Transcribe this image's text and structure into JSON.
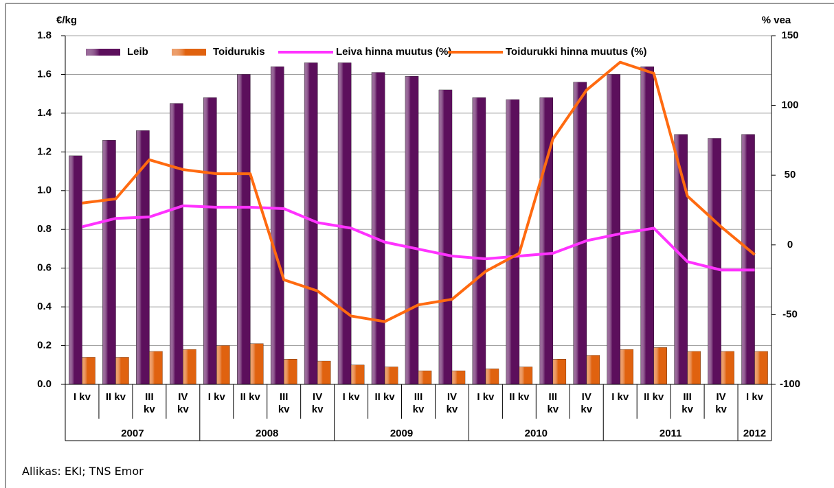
{
  "chart_data": {
    "type": "bar_line",
    "y_label": "€/kg",
    "y2_label": "% vea",
    "categories": [
      "I kv",
      "II kv",
      "III kv",
      "IV kv",
      "I kv",
      "II kv",
      "III kv",
      "IV kv",
      "I kv",
      "II kv",
      "III kv",
      "IV kv",
      "I kv",
      "II kv",
      "III kv",
      "IV kv",
      "I kv",
      "II kv",
      "III kv",
      "IV kv",
      "I kv"
    ],
    "years": [
      "2007",
      "2008",
      "2009",
      "2010",
      "2011",
      "2012"
    ],
    "series": [
      {
        "name": "Leib",
        "kind": "bar",
        "color": "#5c0f5c",
        "values": [
          1.18,
          1.26,
          1.31,
          1.45,
          1.48,
          1.6,
          1.64,
          1.66,
          1.66,
          1.61,
          1.59,
          1.52,
          1.48,
          1.47,
          1.48,
          1.56,
          1.6,
          1.64,
          1.29,
          1.27,
          1.29
        ]
      },
      {
        "name": "Toidurukis",
        "kind": "bar",
        "color": "#e0620f",
        "values": [
          0.14,
          0.14,
          0.17,
          0.18,
          0.2,
          0.21,
          0.13,
          0.12,
          0.1,
          0.09,
          0.07,
          0.07,
          0.08,
          0.09,
          0.13,
          0.15,
          0.18,
          0.19,
          0.17,
          0.17,
          0.17
        ]
      },
      {
        "name": "Leiva hinna muutus (%)",
        "kind": "line",
        "axis": "y2",
        "color": "#ff33ff",
        "values": [
          13,
          19,
          20,
          28,
          27,
          27,
          26,
          16,
          12,
          2,
          -3,
          -8,
          -10,
          -8,
          -6,
          3,
          8,
          12,
          -12,
          -18,
          -18
        ]
      },
      {
        "name": "Toidurukki hinna muutus (%)",
        "kind": "line",
        "axis": "y2",
        "color": "#ff6a10",
        "values": [
          30,
          33,
          61,
          54,
          51,
          51,
          -25,
          -33,
          -51,
          -55,
          -43,
          -39,
          -19,
          -6,
          76,
          111,
          131,
          123,
          35,
          13,
          -7
        ]
      }
    ],
    "ylim": [
      0,
      1.8
    ],
    "yticks": [
      {
        "value": 0,
        "label": "0.0"
      },
      0.2,
      0.4,
      0.6,
      0.8,
      {
        "value": 1,
        "label": "1.0"
      },
      1.2,
      1.4,
      1.6,
      1.8
    ],
    "y2lim": [
      -100,
      150
    ],
    "y2ticks": [
      -100,
      -50,
      0,
      50,
      100,
      150
    ],
    "grid": true,
    "legend": "top",
    "source": "Allikas: EKI; TNS Emor"
  }
}
